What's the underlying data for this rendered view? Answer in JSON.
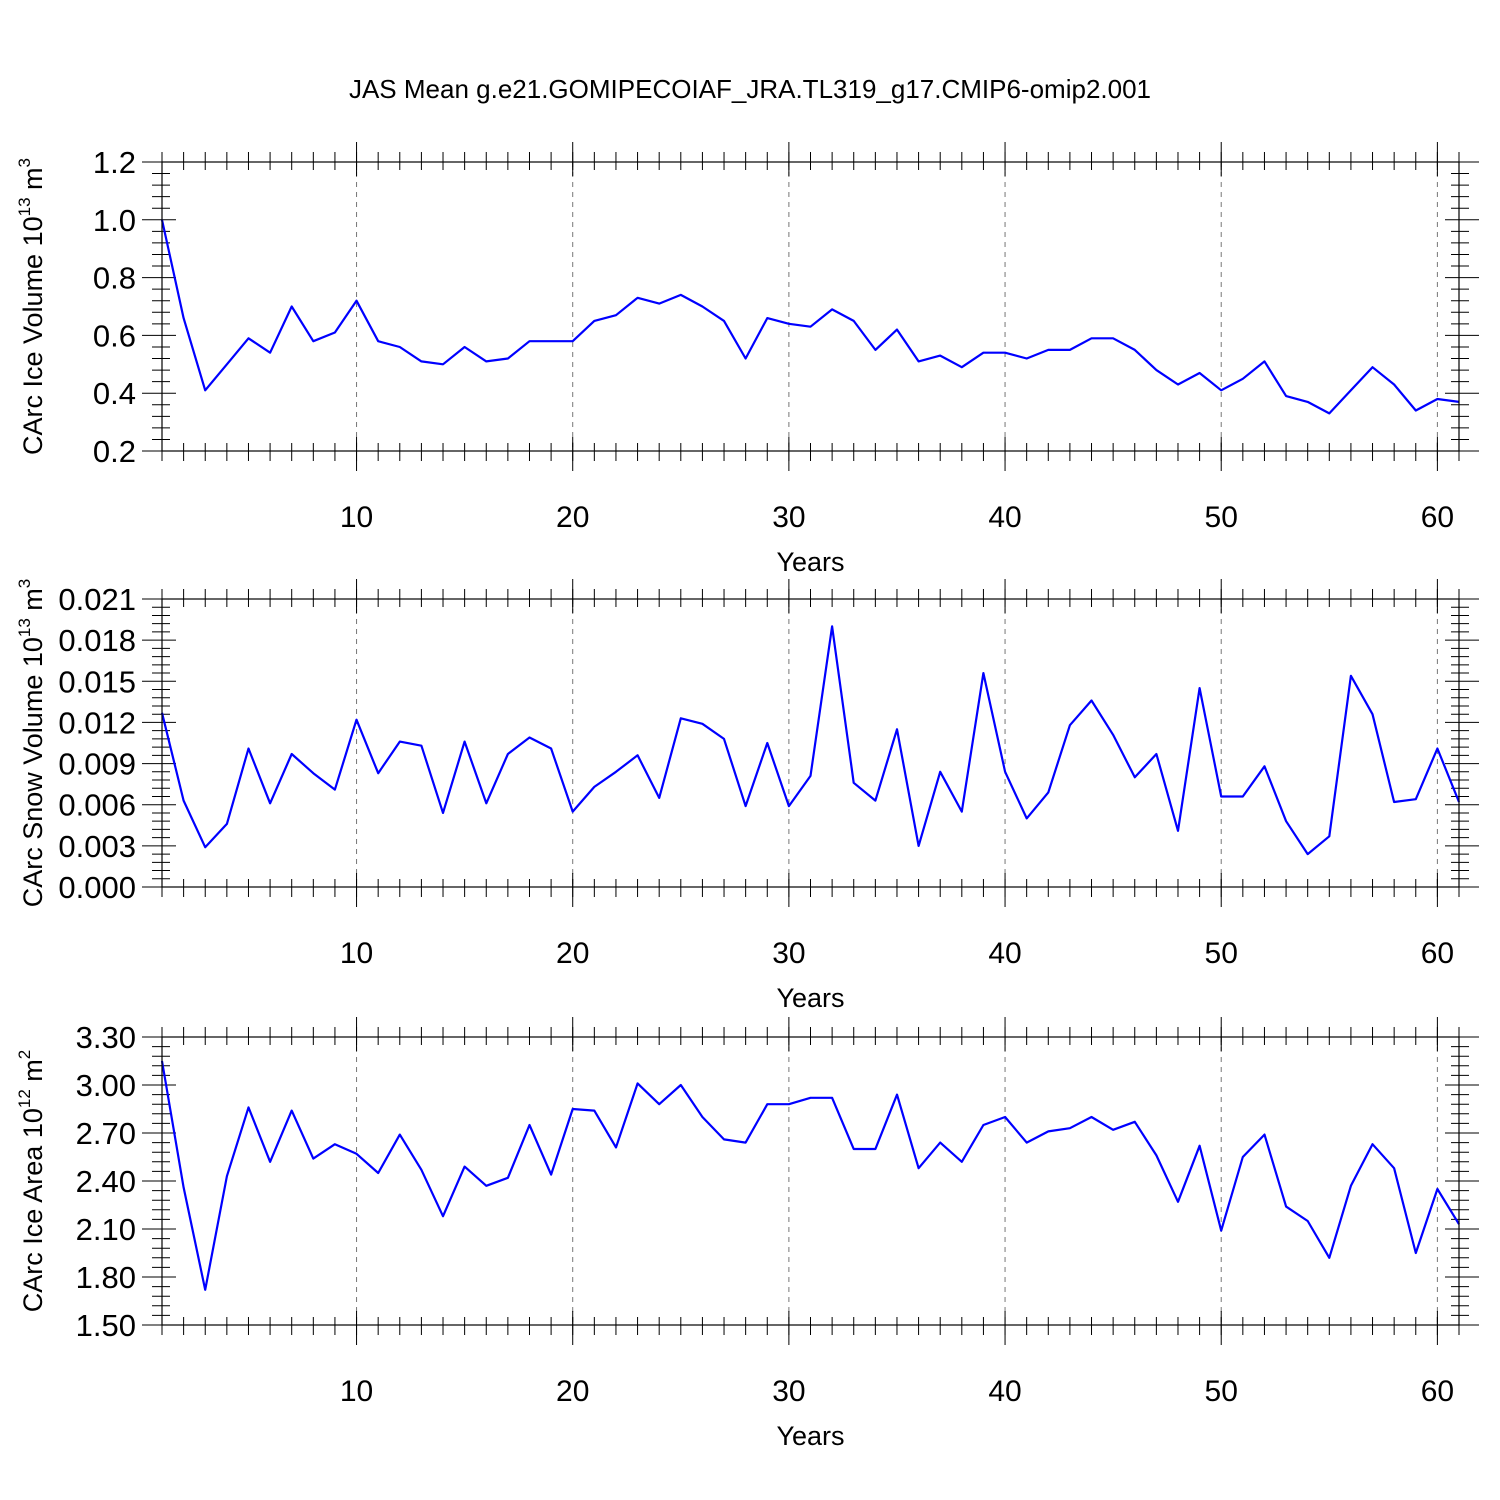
{
  "title": "JAS Mean g.e21.GOMIPECOIAF_JRA.TL319_g17.CMIP6-omip2.001",
  "colors": {
    "line": "#0000ff",
    "grid": "#777777"
  },
  "chart_data": [
    {
      "type": "line",
      "ylabel_main": "CArc Ice Volume 10",
      "ylabel_sup": "13",
      "ylabel_unit": " m",
      "ylabel_unit_sup": "3",
      "xlabel": "Years",
      "xlim": [
        1,
        61
      ],
      "ylim": [
        0.2,
        1.2
      ],
      "yticks": [
        "0.2",
        "0.4",
        "0.6",
        "0.8",
        "1.0",
        "1.2"
      ],
      "xticks": [
        "10",
        "20",
        "30",
        "40",
        "50",
        "60"
      ],
      "x_grid": [
        10,
        20,
        30,
        40,
        50,
        60
      ],
      "x": [
        1,
        2,
        3,
        4,
        5,
        6,
        7,
        8,
        9,
        10,
        11,
        12,
        13,
        14,
        15,
        16,
        17,
        18,
        19,
        20,
        21,
        22,
        23,
        24,
        25,
        26,
        27,
        28,
        29,
        30,
        31,
        32,
        33,
        34,
        35,
        36,
        37,
        38,
        39,
        40,
        41,
        42,
        43,
        44,
        45,
        46,
        47,
        48,
        49,
        50,
        51,
        52,
        53,
        54,
        55,
        56,
        57,
        58,
        59,
        60,
        61
      ],
      "values": [
        1.0,
        0.66,
        0.41,
        0.5,
        0.59,
        0.54,
        0.7,
        0.58,
        0.61,
        0.72,
        0.58,
        0.56,
        0.51,
        0.5,
        0.56,
        0.51,
        0.52,
        0.58,
        0.58,
        0.58,
        0.65,
        0.67,
        0.73,
        0.71,
        0.74,
        0.7,
        0.65,
        0.52,
        0.66,
        0.64,
        0.63,
        0.69,
        0.65,
        0.55,
        0.62,
        0.51,
        0.53,
        0.49,
        0.54,
        0.54,
        0.52,
        0.55,
        0.55,
        0.59,
        0.59,
        0.55,
        0.48,
        0.43,
        0.47,
        0.41,
        0.45,
        0.51,
        0.39,
        0.37,
        0.33,
        0.41,
        0.49,
        0.43,
        0.34,
        0.38,
        0.37
      ]
    },
    {
      "type": "line",
      "ylabel_main": "CArc Snow Volume 10",
      "ylabel_sup": "13",
      "ylabel_unit": " m",
      "ylabel_unit_sup": "3",
      "xlabel": "Years",
      "xlim": [
        1,
        61
      ],
      "ylim": [
        0.0,
        0.021
      ],
      "yticks": [
        "0.000",
        "0.003",
        "0.006",
        "0.009",
        "0.012",
        "0.015",
        "0.018",
        "0.021"
      ],
      "xticks": [
        "10",
        "20",
        "30",
        "40",
        "50",
        "60"
      ],
      "x_grid": [
        10,
        20,
        30,
        40,
        50,
        60
      ],
      "x": [
        1,
        2,
        3,
        4,
        5,
        6,
        7,
        8,
        9,
        10,
        11,
        12,
        13,
        14,
        15,
        16,
        17,
        18,
        19,
        20,
        21,
        22,
        23,
        24,
        25,
        26,
        27,
        28,
        29,
        30,
        31,
        32,
        33,
        34,
        35,
        36,
        37,
        38,
        39,
        40,
        41,
        42,
        43,
        44,
        45,
        46,
        47,
        48,
        49,
        50,
        51,
        52,
        53,
        54,
        55,
        56,
        57,
        58,
        59,
        60,
        61
      ],
      "values": [
        0.0127,
        0.0063,
        0.0029,
        0.0046,
        0.0101,
        0.0061,
        0.0097,
        0.0083,
        0.0071,
        0.0122,
        0.0083,
        0.0106,
        0.0103,
        0.0054,
        0.0106,
        0.0061,
        0.0097,
        0.0109,
        0.0101,
        0.0055,
        0.0073,
        0.0084,
        0.0096,
        0.0065,
        0.0123,
        0.0119,
        0.0108,
        0.0059,
        0.0105,
        0.0059,
        0.0081,
        0.019,
        0.0076,
        0.0063,
        0.0115,
        0.003,
        0.0084,
        0.0055,
        0.0156,
        0.0084,
        0.005,
        0.0069,
        0.0118,
        0.0136,
        0.0111,
        0.008,
        0.0097,
        0.0041,
        0.0145,
        0.0066,
        0.0066,
        0.0088,
        0.0048,
        0.0024,
        0.0037,
        0.0154,
        0.0126,
        0.0062,
        0.0064,
        0.0101,
        0.0062
      ]
    },
    {
      "type": "line",
      "ylabel_main": "CArc Ice Area 10",
      "ylabel_sup": "12",
      "ylabel_unit": " m",
      "ylabel_unit_sup": "2",
      "xlabel": "Years",
      "xlim": [
        1,
        61
      ],
      "ylim": [
        1.5,
        3.3
      ],
      "yticks": [
        "1.50",
        "1.80",
        "2.10",
        "2.40",
        "2.70",
        "3.00",
        "3.30"
      ],
      "xticks": [
        "10",
        "20",
        "30",
        "40",
        "50",
        "60"
      ],
      "x_grid": [
        10,
        20,
        30,
        40,
        50,
        60
      ],
      "x": [
        1,
        2,
        3,
        4,
        5,
        6,
        7,
        8,
        9,
        10,
        11,
        12,
        13,
        14,
        15,
        16,
        17,
        18,
        19,
        20,
        21,
        22,
        23,
        24,
        25,
        26,
        27,
        28,
        29,
        30,
        31,
        32,
        33,
        34,
        35,
        36,
        37,
        38,
        39,
        40,
        41,
        42,
        43,
        44,
        45,
        46,
        47,
        48,
        49,
        50,
        51,
        52,
        53,
        54,
        55,
        56,
        57,
        58,
        59,
        60,
        61
      ],
      "values": [
        3.15,
        2.36,
        1.72,
        2.43,
        2.86,
        2.52,
        2.84,
        2.54,
        2.63,
        2.57,
        2.45,
        2.69,
        2.47,
        2.18,
        2.49,
        2.37,
        2.42,
        2.75,
        2.44,
        2.85,
        2.84,
        2.61,
        3.01,
        2.88,
        3.0,
        2.8,
        2.66,
        2.64,
        2.88,
        2.88,
        2.92,
        2.92,
        2.6,
        2.6,
        2.94,
        2.48,
        2.64,
        2.52,
        2.75,
        2.8,
        2.64,
        2.71,
        2.73,
        2.8,
        2.72,
        2.77,
        2.56,
        2.27,
        2.62,
        2.09,
        2.55,
        2.69,
        2.24,
        2.15,
        1.92,
        2.37,
        2.63,
        2.48,
        1.95,
        2.35,
        2.13
      ]
    }
  ]
}
